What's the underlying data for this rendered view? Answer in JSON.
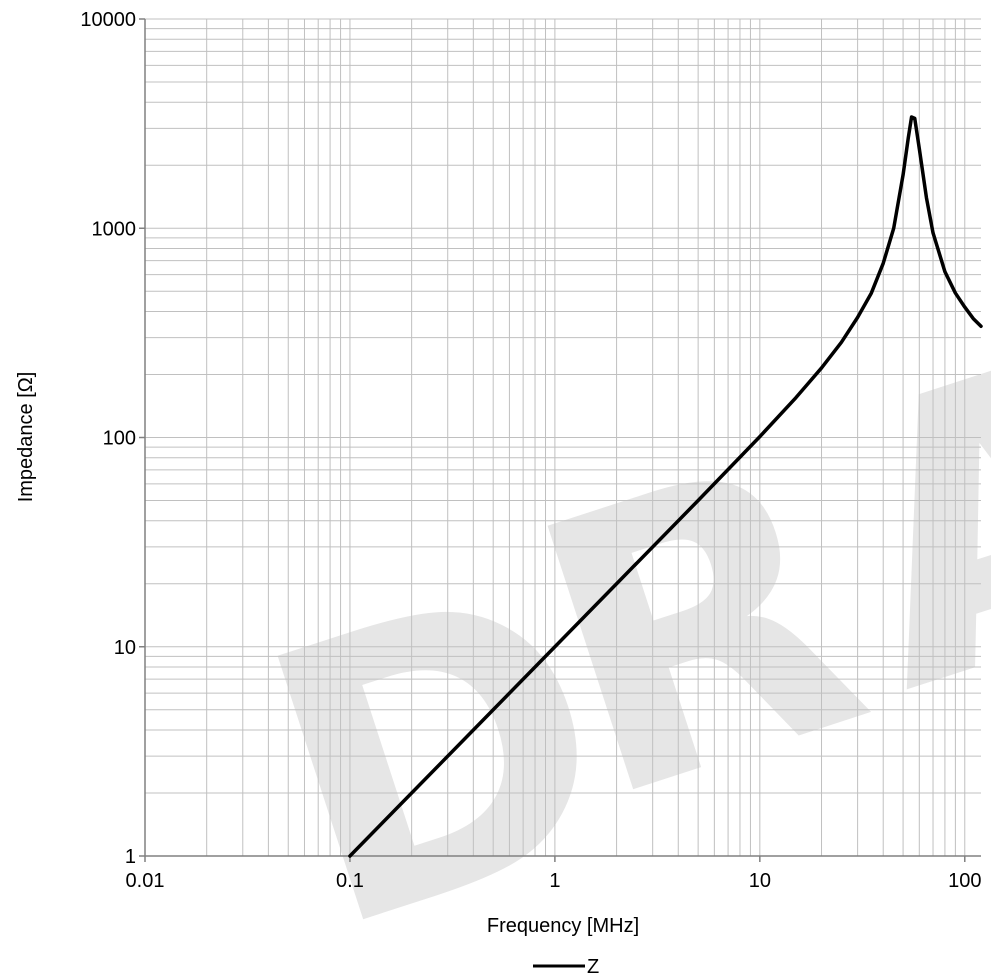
{
  "chart_data": {
    "type": "line",
    "xlabel": "Frequency [MHz]",
    "ylabel": "Impedance [Ω]",
    "x_scale": "log",
    "y_scale": "log",
    "xlim": [
      0.01,
      120
    ],
    "ylim": [
      1,
      10000
    ],
    "x_ticks": [
      "0.01",
      "0.1",
      "1",
      "10",
      "100"
    ],
    "y_ticks": [
      "1",
      "10",
      "100",
      "1000",
      "10000"
    ],
    "grid": true,
    "legend": "bottom",
    "watermark": "D R A",
    "colors": {
      "series": "#000000",
      "grid": "#c0c0c0",
      "watermark": "#e6e6e6"
    },
    "series": [
      {
        "name": "Z",
        "x": [
          0.1,
          0.2,
          0.5,
          1,
          2,
          5,
          10,
          15,
          20,
          25,
          30,
          35,
          40,
          45,
          50,
          53,
          55,
          57,
          60,
          65,
          70,
          80,
          90,
          100,
          110,
          120
        ],
        "y": [
          1.0,
          2.0,
          5.0,
          10.0,
          20.0,
          50.0,
          101,
          155,
          215,
          285,
          375,
          490,
          680,
          1000,
          1800,
          2700,
          3400,
          3350,
          2400,
          1400,
          950,
          620,
          490,
          420,
          370,
          340
        ]
      }
    ]
  }
}
